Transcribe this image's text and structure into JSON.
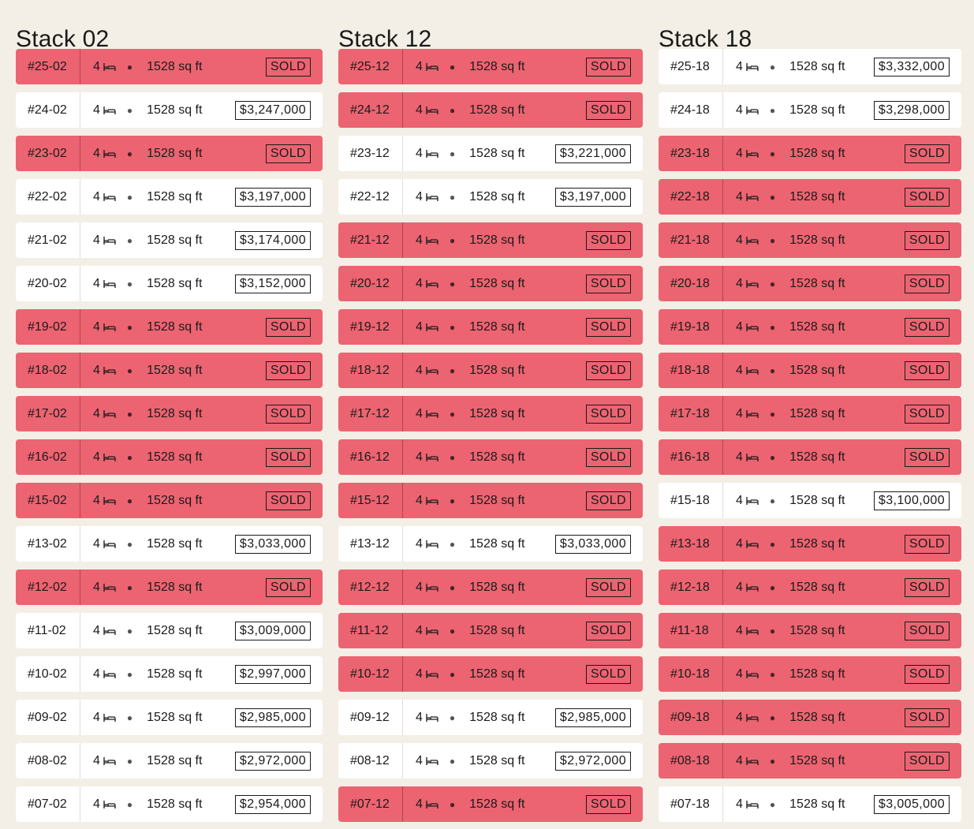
{
  "stacks": [
    {
      "title": "Stack 02",
      "units": [
        {
          "unit": "#25-02",
          "beds": "4",
          "area": "1528 sq ft",
          "status": "SOLD",
          "sold": true
        },
        {
          "unit": "#24-02",
          "beds": "4",
          "area": "1528 sq ft",
          "status": "$3,247,000",
          "sold": false
        },
        {
          "unit": "#23-02",
          "beds": "4",
          "area": "1528 sq ft",
          "status": "SOLD",
          "sold": true
        },
        {
          "unit": "#22-02",
          "beds": "4",
          "area": "1528 sq ft",
          "status": "$3,197,000",
          "sold": false
        },
        {
          "unit": "#21-02",
          "beds": "4",
          "area": "1528 sq ft",
          "status": "$3,174,000",
          "sold": false
        },
        {
          "unit": "#20-02",
          "beds": "4",
          "area": "1528 sq ft",
          "status": "$3,152,000",
          "sold": false
        },
        {
          "unit": "#19-02",
          "beds": "4",
          "area": "1528 sq ft",
          "status": "SOLD",
          "sold": true
        },
        {
          "unit": "#18-02",
          "beds": "4",
          "area": "1528 sq ft",
          "status": "SOLD",
          "sold": true
        },
        {
          "unit": "#17-02",
          "beds": "4",
          "area": "1528 sq ft",
          "status": "SOLD",
          "sold": true
        },
        {
          "unit": "#16-02",
          "beds": "4",
          "area": "1528 sq ft",
          "status": "SOLD",
          "sold": true
        },
        {
          "unit": "#15-02",
          "beds": "4",
          "area": "1528 sq ft",
          "status": "SOLD",
          "sold": true
        },
        {
          "unit": "#13-02",
          "beds": "4",
          "area": "1528 sq ft",
          "status": "$3,033,000",
          "sold": false
        },
        {
          "unit": "#12-02",
          "beds": "4",
          "area": "1528 sq ft",
          "status": "SOLD",
          "sold": true
        },
        {
          "unit": "#11-02",
          "beds": "4",
          "area": "1528 sq ft",
          "status": "$3,009,000",
          "sold": false
        },
        {
          "unit": "#10-02",
          "beds": "4",
          "area": "1528 sq ft",
          "status": "$2,997,000",
          "sold": false
        },
        {
          "unit": "#09-02",
          "beds": "4",
          "area": "1528 sq ft",
          "status": "$2,985,000",
          "sold": false
        },
        {
          "unit": "#08-02",
          "beds": "4",
          "area": "1528 sq ft",
          "status": "$2,972,000",
          "sold": false
        },
        {
          "unit": "#07-02",
          "beds": "4",
          "area": "1528 sq ft",
          "status": "$2,954,000",
          "sold": false
        }
      ]
    },
    {
      "title": "Stack 12",
      "units": [
        {
          "unit": "#25-12",
          "beds": "4",
          "area": "1528 sq ft",
          "status": "SOLD",
          "sold": true
        },
        {
          "unit": "#24-12",
          "beds": "4",
          "area": "1528 sq ft",
          "status": "SOLD",
          "sold": true
        },
        {
          "unit": "#23-12",
          "beds": "4",
          "area": "1528 sq ft",
          "status": "$3,221,000",
          "sold": false
        },
        {
          "unit": "#22-12",
          "beds": "4",
          "area": "1528 sq ft",
          "status": "$3,197,000",
          "sold": false
        },
        {
          "unit": "#21-12",
          "beds": "4",
          "area": "1528 sq ft",
          "status": "SOLD",
          "sold": true
        },
        {
          "unit": "#20-12",
          "beds": "4",
          "area": "1528 sq ft",
          "status": "SOLD",
          "sold": true
        },
        {
          "unit": "#19-12",
          "beds": "4",
          "area": "1528 sq ft",
          "status": "SOLD",
          "sold": true
        },
        {
          "unit": "#18-12",
          "beds": "4",
          "area": "1528 sq ft",
          "status": "SOLD",
          "sold": true
        },
        {
          "unit": "#17-12",
          "beds": "4",
          "area": "1528 sq ft",
          "status": "SOLD",
          "sold": true
        },
        {
          "unit": "#16-12",
          "beds": "4",
          "area": "1528 sq ft",
          "status": "SOLD",
          "sold": true
        },
        {
          "unit": "#15-12",
          "beds": "4",
          "area": "1528 sq ft",
          "status": "SOLD",
          "sold": true
        },
        {
          "unit": "#13-12",
          "beds": "4",
          "area": "1528 sq ft",
          "status": "$3,033,000",
          "sold": false
        },
        {
          "unit": "#12-12",
          "beds": "4",
          "area": "1528 sq ft",
          "status": "SOLD",
          "sold": true
        },
        {
          "unit": "#11-12",
          "beds": "4",
          "area": "1528 sq ft",
          "status": "SOLD",
          "sold": true
        },
        {
          "unit": "#10-12",
          "beds": "4",
          "area": "1528 sq ft",
          "status": "SOLD",
          "sold": true
        },
        {
          "unit": "#09-12",
          "beds": "4",
          "area": "1528 sq ft",
          "status": "$2,985,000",
          "sold": false
        },
        {
          "unit": "#08-12",
          "beds": "4",
          "area": "1528 sq ft",
          "status": "$2,972,000",
          "sold": false
        },
        {
          "unit": "#07-12",
          "beds": "4",
          "area": "1528 sq ft",
          "status": "SOLD",
          "sold": true
        }
      ]
    },
    {
      "title": "Stack 18",
      "units": [
        {
          "unit": "#25-18",
          "beds": "4",
          "area": "1528 sq ft",
          "status": "$3,332,000",
          "sold": false
        },
        {
          "unit": "#24-18",
          "beds": "4",
          "area": "1528 sq ft",
          "status": "$3,298,000",
          "sold": false
        },
        {
          "unit": "#23-18",
          "beds": "4",
          "area": "1528 sq ft",
          "status": "SOLD",
          "sold": true
        },
        {
          "unit": "#22-18",
          "beds": "4",
          "area": "1528 sq ft",
          "status": "SOLD",
          "sold": true
        },
        {
          "unit": "#21-18",
          "beds": "4",
          "area": "1528 sq ft",
          "status": "SOLD",
          "sold": true
        },
        {
          "unit": "#20-18",
          "beds": "4",
          "area": "1528 sq ft",
          "status": "SOLD",
          "sold": true
        },
        {
          "unit": "#19-18",
          "beds": "4",
          "area": "1528 sq ft",
          "status": "SOLD",
          "sold": true
        },
        {
          "unit": "#18-18",
          "beds": "4",
          "area": "1528 sq ft",
          "status": "SOLD",
          "sold": true
        },
        {
          "unit": "#17-18",
          "beds": "4",
          "area": "1528 sq ft",
          "status": "SOLD",
          "sold": true
        },
        {
          "unit": "#16-18",
          "beds": "4",
          "area": "1528 sq ft",
          "status": "SOLD",
          "sold": true
        },
        {
          "unit": "#15-18",
          "beds": "4",
          "area": "1528 sq ft",
          "status": "$3,100,000",
          "sold": false
        },
        {
          "unit": "#13-18",
          "beds": "4",
          "area": "1528 sq ft",
          "status": "SOLD",
          "sold": true
        },
        {
          "unit": "#12-18",
          "beds": "4",
          "area": "1528 sq ft",
          "status": "SOLD",
          "sold": true
        },
        {
          "unit": "#11-18",
          "beds": "4",
          "area": "1528 sq ft",
          "status": "SOLD",
          "sold": true
        },
        {
          "unit": "#10-18",
          "beds": "4",
          "area": "1528 sq ft",
          "status": "SOLD",
          "sold": true
        },
        {
          "unit": "#09-18",
          "beds": "4",
          "area": "1528 sq ft",
          "status": "SOLD",
          "sold": true
        },
        {
          "unit": "#08-18",
          "beds": "4",
          "area": "1528 sq ft",
          "status": "SOLD",
          "sold": true
        },
        {
          "unit": "#07-18",
          "beds": "4",
          "area": "1528 sq ft",
          "status": "$3,005,000",
          "sold": false
        }
      ]
    }
  ],
  "icons": {
    "bed": "bed-icon",
    "separator": "dot-separator"
  },
  "colors": {
    "background": "#f3efe6",
    "sold": "#ec6471",
    "available": "#ffffff",
    "text": "#1a1a1a"
  }
}
